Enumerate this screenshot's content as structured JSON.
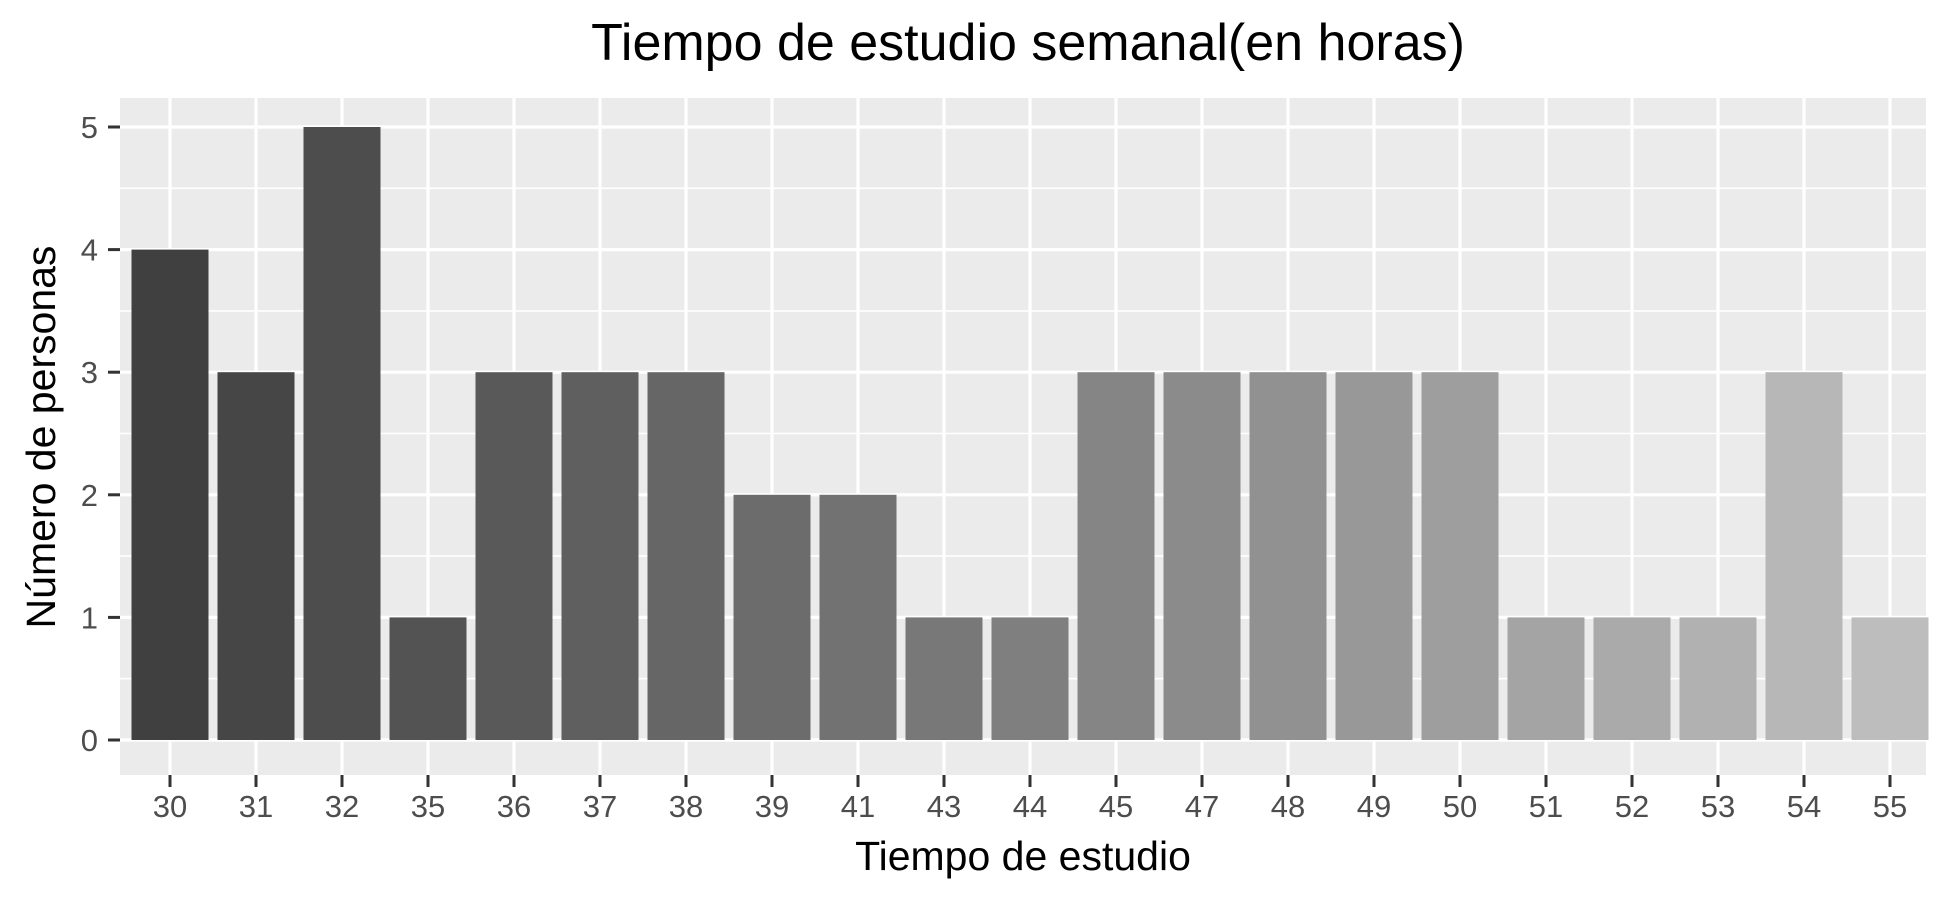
{
  "chart_data": {
    "type": "bar",
    "title": "Tiempo de estudio semanal(en horas)",
    "xlabel": "Tiempo de estudio",
    "ylabel": "Número de personas",
    "categories": [
      "30",
      "31",
      "32",
      "35",
      "36",
      "37",
      "38",
      "39",
      "41",
      "43",
      "44",
      "45",
      "47",
      "48",
      "49",
      "50",
      "51",
      "52",
      "53",
      "54",
      "55"
    ],
    "values": [
      4,
      3,
      5,
      1,
      3,
      3,
      3,
      2,
      2,
      1,
      1,
      3,
      3,
      3,
      3,
      3,
      1,
      1,
      1,
      3,
      1
    ],
    "ylim": [
      0,
      5
    ],
    "yticks": [
      "0",
      "1",
      "2",
      "3",
      "4",
      "5"
    ],
    "grid": true,
    "legend": "none",
    "colors": {
      "panel_background": "#EBEBEB",
      "gridline": "#FFFFFF",
      "bar_fill_start": "#404040",
      "bar_fill_end": "#BDBDBD"
    }
  }
}
